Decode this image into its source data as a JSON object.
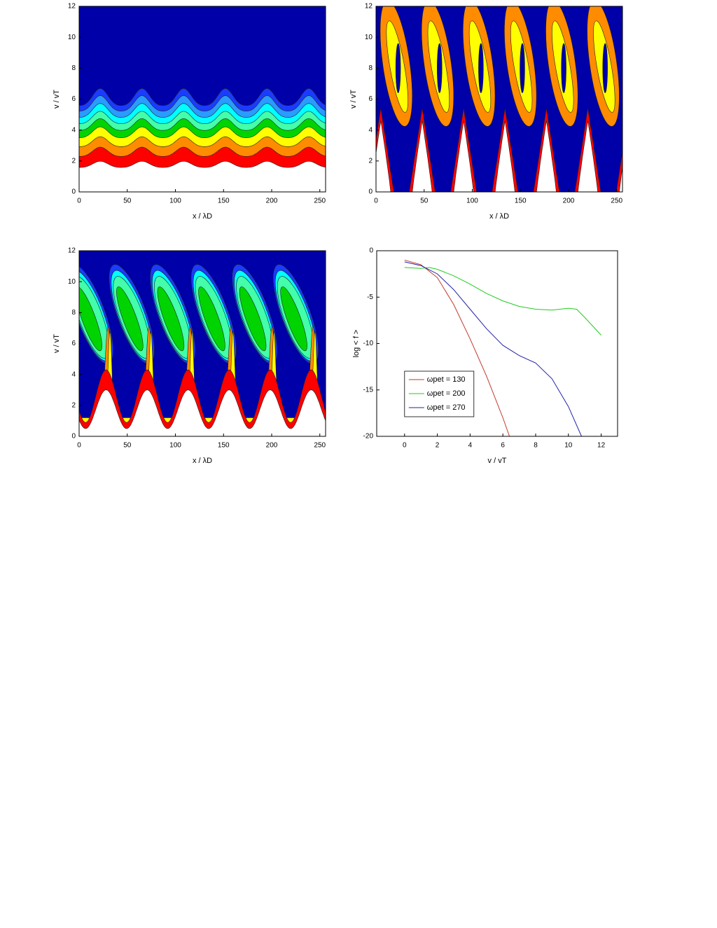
{
  "chart_data": [
    {
      "type": "contour",
      "xlabel": "x / λD",
      "ylabel": "v / vT",
      "xlim": [
        0,
        256
      ],
      "ylim": [
        0,
        12
      ],
      "xticks": [
        0,
        50,
        100,
        150,
        200,
        250
      ],
      "yticks": [
        0,
        2,
        4,
        6,
        8,
        10,
        12
      ]
    },
    {
      "type": "contour",
      "xlabel": "x / λD",
      "ylabel": "v / vT",
      "xlim": [
        0,
        256
      ],
      "ylim": [
        0,
        12
      ],
      "xticks": [
        0,
        50,
        100,
        150,
        200,
        250
      ],
      "yticks": [
        0,
        2,
        4,
        6,
        8,
        10,
        12
      ]
    },
    {
      "type": "contour",
      "xlabel": "x / λD",
      "ylabel": "v / vT",
      "xlim": [
        0,
        256
      ],
      "ylim": [
        0,
        12
      ],
      "xticks": [
        0,
        50,
        100,
        150,
        200,
        250
      ],
      "yticks": [
        0,
        2,
        4,
        6,
        8,
        10,
        12
      ]
    },
    {
      "type": "line",
      "xlabel": "v / vT",
      "ylabel": "log < f >",
      "xlim": [
        -1.7,
        13
      ],
      "ylim": [
        -20,
        0
      ],
      "xticks": [
        0,
        2,
        4,
        6,
        8,
        10,
        12
      ],
      "yticks": [
        0,
        -5,
        -10,
        -15,
        -20
      ],
      "legend": "lower left",
      "series": [
        {
          "name": "ωpet = 130",
          "color": "#c0392b",
          "x": [
            0,
            1,
            2,
            3,
            4,
            5,
            6,
            6.4
          ],
          "values": [
            -1,
            -1.5,
            -2.9,
            -5.8,
            -9.5,
            -13.5,
            -18,
            -20
          ]
        },
        {
          "name": "ωpet = 200",
          "color": "#22cc22",
          "x": [
            0,
            1,
            1.5,
            2,
            3,
            4,
            5,
            6,
            7,
            8,
            9,
            10,
            10.5,
            11,
            12
          ],
          "values": [
            -1.8,
            -1.9,
            -1.8,
            -2,
            -2.7,
            -3.6,
            -4.6,
            -5.4,
            -6,
            -6.3,
            -6.4,
            -6.2,
            -6.3,
            -7.2,
            -9.1
          ]
        },
        {
          "name": "ωpet = 270",
          "color": "#2222aa",
          "x": [
            0,
            1,
            2,
            3,
            4,
            5,
            6,
            7,
            8,
            9,
            10,
            10.8
          ],
          "values": [
            -1.2,
            -1.6,
            -2.5,
            -4.2,
            -6.3,
            -8.4,
            -10.2,
            -11.3,
            -12.1,
            -13.8,
            -16.8,
            -20
          ]
        }
      ]
    }
  ]
}
